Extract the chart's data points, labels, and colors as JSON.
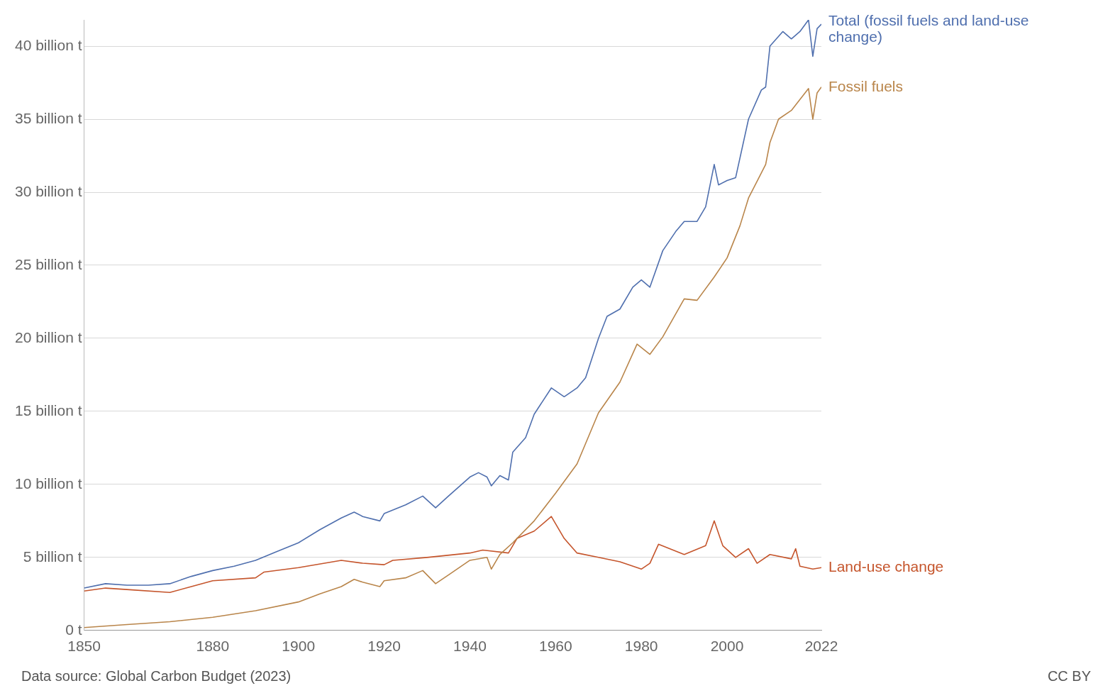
{
  "chart_data": {
    "type": "line",
    "xlim": [
      1850,
      2022
    ],
    "xticks": [
      1850,
      1880,
      1900,
      1920,
      1940,
      1960,
      1980,
      2000,
      2022
    ],
    "ylim": [
      0,
      41.8
    ],
    "yticks": [
      {
        "value": 0,
        "label": "0 t"
      },
      {
        "value": 5,
        "label": "5 billion t"
      },
      {
        "value": 10,
        "label": "10 billion t"
      },
      {
        "value": 15,
        "label": "15 billion t"
      },
      {
        "value": 20,
        "label": "20 billion t"
      },
      {
        "value": 25,
        "label": "25 billion t"
      },
      {
        "value": 30,
        "label": "30 billion t"
      },
      {
        "value": 35,
        "label": "35 billion t"
      },
      {
        "value": 40,
        "label": "40 billion t"
      }
    ],
    "grid": "y",
    "legend": false,
    "marker": "none",
    "line_style": "solid",
    "series": [
      {
        "name": "Total (fossil fuels and land-use change)",
        "color": "#4f6fae",
        "x": [
          1850,
          1855,
          1860,
          1865,
          1870,
          1875,
          1880,
          1885,
          1890,
          1895,
          1900,
          1905,
          1910,
          1913,
          1915,
          1919,
          1920,
          1925,
          1929,
          1932,
          1935,
          1940,
          1942,
          1944,
          1945,
          1947,
          1949,
          1950,
          1953,
          1955,
          1959,
          1962,
          1965,
          1967,
          1970,
          1972,
          1975,
          1978,
          1980,
          1982,
          1985,
          1988,
          1990,
          1993,
          1995,
          1997,
          1998,
          2000,
          2002,
          2005,
          2008,
          2009,
          2010,
          2013,
          2015,
          2017,
          2019,
          2020,
          2021,
          2022
        ],
        "values": [
          2.9,
          3.2,
          3.1,
          3.1,
          3.2,
          3.7,
          4.1,
          4.4,
          4.8,
          5.4,
          6.0,
          6.9,
          7.7,
          8.1,
          7.8,
          7.5,
          8.0,
          8.6,
          9.2,
          8.4,
          9.2,
          10.5,
          10.8,
          10.5,
          9.9,
          10.6,
          10.3,
          12.2,
          13.2,
          14.8,
          16.6,
          16.0,
          16.6,
          17.3,
          20.0,
          21.5,
          22.0,
          23.5,
          24.0,
          23.5,
          26.0,
          27.3,
          28.0,
          28.0,
          29.0,
          31.9,
          30.5,
          30.8,
          31.0,
          35.0,
          37.0,
          37.2,
          40.0,
          41.0,
          40.5,
          41.0,
          41.8,
          39.3,
          41.2,
          41.5
        ]
      },
      {
        "name": "Fossil fuels",
        "color": "#b9854a",
        "x": [
          1850,
          1860,
          1870,
          1880,
          1890,
          1900,
          1905,
          1910,
          1913,
          1915,
          1919,
          1920,
          1925,
          1929,
          1932,
          1935,
          1940,
          1944,
          1945,
          1947,
          1950,
          1955,
          1960,
          1965,
          1970,
          1975,
          1979,
          1982,
          1985,
          1990,
          1993,
          1997,
          2000,
          2003,
          2005,
          2009,
          2010,
          2012,
          2015,
          2019,
          2020,
          2021,
          2022
        ],
        "values": [
          0.2,
          0.4,
          0.6,
          0.9,
          1.35,
          1.95,
          2.5,
          3.0,
          3.5,
          3.3,
          3.0,
          3.4,
          3.6,
          4.1,
          3.2,
          3.8,
          4.8,
          5.0,
          4.2,
          5.2,
          6.0,
          7.5,
          9.4,
          11.4,
          14.9,
          17.0,
          19.6,
          18.9,
          20.1,
          22.7,
          22.6,
          24.2,
          25.5,
          27.7,
          29.6,
          31.9,
          33.4,
          35.0,
          35.6,
          37.1,
          35.0,
          36.8,
          37.2
        ]
      },
      {
        "name": "Land-use change",
        "color": "#c5552c",
        "x": [
          1850,
          1855,
          1860,
          1870,
          1875,
          1880,
          1890,
          1892,
          1900,
          1910,
          1915,
          1920,
          1922,
          1930,
          1940,
          1943,
          1949,
          1951,
          1955,
          1959,
          1962,
          1965,
          1970,
          1975,
          1980,
          1982,
          1984,
          1990,
          1995,
          1997,
          1999,
          2002,
          2005,
          2007,
          2010,
          2015,
          2016,
          2017,
          2020,
          2022
        ],
        "values": [
          2.7,
          2.9,
          2.8,
          2.6,
          3.0,
          3.4,
          3.6,
          4.0,
          4.3,
          4.8,
          4.6,
          4.5,
          4.8,
          5.0,
          5.3,
          5.5,
          5.3,
          6.3,
          6.8,
          7.8,
          6.3,
          5.3,
          5.0,
          4.7,
          4.2,
          4.6,
          5.9,
          5.2,
          5.8,
          7.5,
          5.8,
          5.0,
          5.6,
          4.6,
          5.2,
          4.9,
          5.6,
          4.4,
          4.2,
          4.3
        ]
      }
    ],
    "annotations": [
      "Data source: Global Carbon Budget (2023)",
      "CC BY"
    ]
  }
}
